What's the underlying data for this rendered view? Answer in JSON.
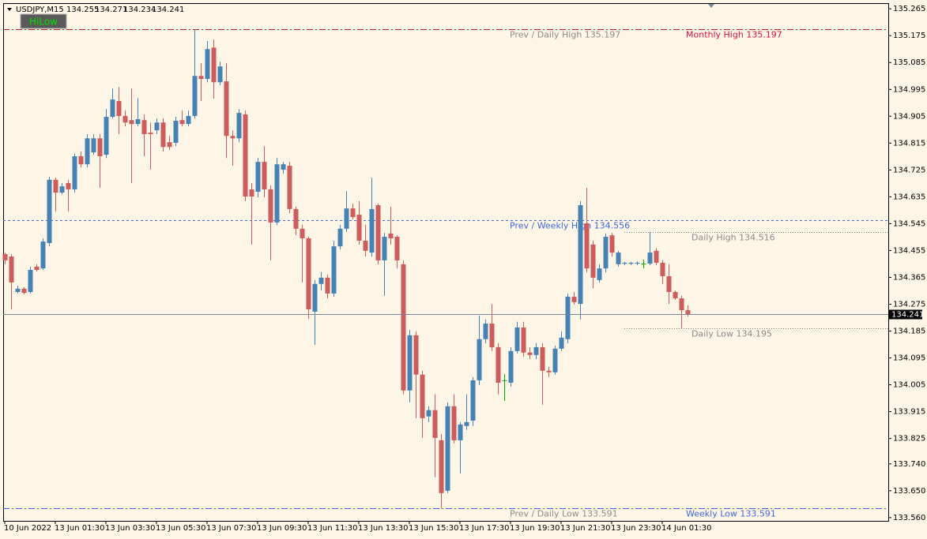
{
  "chart_data": {
    "type": "candlestick",
    "symbol": "USDJPY,M15",
    "button": "HiLow",
    "categories": [
      "10 Jun 2022",
      null,
      null,
      null,
      null,
      null,
      null,
      null,
      "13 Jun 01:30",
      null,
      null,
      null,
      null,
      null,
      null,
      null,
      "13 Jun 03:30",
      null,
      null,
      null,
      null,
      null,
      null,
      null,
      "13 Jun 05:30",
      null,
      null,
      null,
      null,
      null,
      null,
      null,
      "13 Jun 07:30",
      null,
      null,
      null,
      null,
      null,
      null,
      null,
      "13 Jun 09:30",
      null,
      null,
      null,
      null,
      null,
      null,
      null,
      "13 Jun 11:30",
      null,
      null,
      null,
      null,
      null,
      null,
      null,
      "13 Jun 13:30",
      null,
      null,
      null,
      null,
      null,
      null,
      null,
      "13 Jun 15:30",
      null,
      null,
      null,
      null,
      null,
      null,
      null,
      "13 Jun 17:30",
      null,
      null,
      null,
      null,
      null,
      null,
      null,
      "13 Jun 19:30",
      null,
      null,
      null,
      null,
      null,
      null,
      null,
      "13 Jun 21:30",
      null,
      null,
      null,
      null,
      null,
      null,
      null,
      "13 Jun 23:30",
      null,
      null,
      null,
      null,
      null,
      null,
      null,
      "14 Jun 01:30",
      null,
      null,
      null,
      null
    ],
    "open": [
      134.443,
      134.435,
      134.316,
      134.327,
      134.316,
      134.401,
      134.395,
      134.48,
      134.692,
      134.649,
      134.681,
      134.66,
      134.771,
      134.744,
      134.784,
      134.831,
      134.776,
      134.903,
      134.956,
      134.906,
      134.892,
      134.879,
      134.892,
      134.85,
      134.858,
      134.884,
      134.818,
      134.816,
      134.892,
      134.879,
      134.906,
      135.04,
      135.03,
      135.135,
      135.019,
      135.022,
      134.839,
      134.831,
      134.911,
      134.66,
      134.652,
      134.752,
      134.66,
      134.549,
      134.726,
      134.739,
      134.594,
      134.528,
      134.496,
      134.25,
      134.343,
      134.364,
      134.311,
      134.469,
      134.528,
      134.596,
      134.575,
      134.488,
      134.448,
      134.607,
      134.422,
      134.512,
      134.501,
      134.409,
      133.986,
      134.171,
      134.039,
      133.899,
      133.92,
      133.819,
      133.65,
      133.933,
      133.819,
      133.867,
      133.885,
      134.02,
      134.158,
      134.21,
      134.131,
      134.02,
      134.012,
      134.118,
      134.197,
      134.113,
      134.105,
      134.131,
      134.052,
      134.047,
      134.126,
      134.158,
      134.3,
      134.276,
      134.546,
      134.475,
      134.356,
      134.395,
      134.506,
      134.409,
      134.411,
      134.411,
      134.411,
      134.411,
      134.411,
      134.454,
      134.414,
      134.369,
      134.316,
      134.295,
      134.255
    ],
    "high": [
      134.448,
      134.443,
      134.337,
      134.332,
      134.401,
      134.409,
      134.496,
      134.702,
      134.699,
      134.681,
      134.692,
      134.779,
      134.787,
      134.845,
      134.845,
      134.845,
      134.929,
      134.998,
      135.003,
      134.924,
      134.998,
      134.966,
      134.911,
      134.884,
      134.898,
      134.898,
      134.839,
      134.903,
      134.924,
      134.924,
      135.197,
      135.083,
      135.157,
      135.162,
      135.088,
      135.083,
      134.858,
      134.929,
      134.924,
      134.681,
      134.765,
      134.805,
      134.673,
      134.765,
      134.752,
      134.752,
      134.602,
      134.541,
      134.501,
      134.356,
      134.382,
      134.374,
      134.488,
      134.541,
      134.654,
      134.612,
      134.62,
      134.541,
      134.699,
      134.612,
      134.514,
      134.602,
      134.506,
      134.422,
      134.189,
      134.184,
      134.052,
      133.933,
      133.973,
      133.84,
      133.946,
      133.973,
      133.88,
      133.973,
      134.031,
      134.237,
      134.224,
      134.276,
      134.144,
      134.041,
      134.131,
      134.216,
      134.216,
      134.131,
      134.144,
      134.144,
      134.065,
      134.136,
      134.184,
      134.311,
      134.316,
      134.62,
      134.665,
      134.488,
      134.409,
      134.512,
      134.514,
      134.454,
      134.417,
      134.417,
      134.419,
      134.424,
      134.516,
      134.462,
      134.422,
      134.409,
      134.321,
      134.303,
      134.271
    ],
    "low": [
      134.409,
      134.258,
      134.311,
      134.308,
      134.311,
      134.385,
      134.39,
      134.469,
      134.586,
      134.644,
      134.586,
      134.649,
      134.734,
      134.734,
      134.776,
      134.665,
      134.765,
      134.898,
      134.845,
      134.871,
      134.681,
      134.871,
      134.771,
      134.726,
      134.845,
      134.787,
      134.792,
      134.805,
      134.871,
      134.871,
      134.898,
      134.956,
      135.019,
      134.964,
      135.009,
      134.765,
      134.739,
      134.818,
      134.62,
      134.475,
      134.633,
      134.633,
      134.422,
      134.541,
      134.713,
      134.58,
      134.506,
      134.348,
      134.226,
      134.139,
      134.321,
      134.295,
      134.3,
      134.459,
      134.517,
      134.559,
      134.475,
      134.435,
      134.435,
      134.409,
      134.303,
      134.475,
      134.395,
      133.973,
      133.946,
      133.893,
      133.827,
      133.88,
      133.695,
      133.591,
      133.642,
      133.809,
      133.708,
      133.854,
      133.867,
      134.004,
      134.144,
      134.118,
      133.973,
      133.951,
      133.999,
      134.11,
      134.099,
      134.091,
      134.091,
      133.938,
      134.031,
      134.039,
      134.118,
      134.144,
      134.274,
      134.224,
      134.382,
      134.329,
      134.348,
      134.382,
      134.435,
      134.401,
      134.406,
      134.406,
      134.406,
      134.395,
      134.406,
      134.406,
      134.343,
      134.276,
      134.29,
      134.195,
      134.234
    ],
    "close": [
      134.422,
      134.348,
      134.327,
      134.313,
      134.39,
      134.39,
      134.485,
      134.692,
      134.649,
      134.67,
      134.66,
      134.771,
      134.744,
      134.831,
      134.831,
      134.771,
      134.903,
      134.961,
      134.906,
      134.884,
      134.879,
      134.895,
      134.845,
      134.845,
      134.884,
      134.802,
      134.802,
      134.89,
      134.879,
      134.906,
      135.04,
      135.03,
      135.13,
      135.019,
      135.072,
      134.839,
      134.831,
      134.916,
      134.636,
      134.636,
      134.752,
      134.66,
      134.549,
      134.744,
      134.744,
      134.594,
      134.528,
      134.496,
      134.258,
      134.343,
      134.364,
      134.311,
      134.469,
      134.528,
      134.596,
      134.567,
      134.488,
      134.454,
      134.594,
      134.422,
      134.501,
      134.496,
      134.422,
      133.986,
      134.171,
      134.039,
      133.893,
      133.92,
      133.827,
      133.642,
      133.933,
      133.819,
      133.872,
      133.88,
      134.02,
      134.158,
      134.21,
      134.131,
      134.012,
      134.02,
      134.118,
      134.197,
      134.113,
      134.105,
      134.131,
      134.052,
      134.047,
      134.126,
      134.163,
      134.3,
      134.282,
      134.607,
      134.395,
      134.364,
      134.395,
      134.501,
      134.448,
      134.448,
      134.414,
      134.414,
      134.414,
      134.411,
      134.448,
      134.414,
      134.369,
      134.316,
      134.295,
      134.255,
      134.241
    ],
    "up_color": "#4682b4",
    "down_color": "#cd5c5c",
    "doji_color": "#00b000",
    "ylim": [
      133.549,
      135.284
    ],
    "yticks": [
      135.265,
      135.175,
      135.085,
      134.995,
      134.905,
      134.815,
      134.725,
      134.635,
      134.545,
      134.455,
      134.365,
      134.275,
      134.185,
      134.095,
      134.005,
      133.915,
      133.825,
      {
        "value": 133.74,
        "label": "133.740"
      },
      {
        "value": 133.65,
        "label": "133.650"
      },
      {
        "value": 133.56,
        "label": "133.560"
      }
    ],
    "levels": [
      {
        "value": 135.197,
        "color": "#b22222",
        "style": "dashdot",
        "labels": [
          {
            "text": "Prev / Daily High 135.197",
            "color": "#8c8c8c"
          },
          {
            "text": "Monthly High 135.197",
            "color": "#dc143c"
          }
        ]
      },
      {
        "value": 134.556,
        "color": "#4169e1",
        "style": "dashed",
        "labels": [
          {
            "text": "Prev / Weekly High 134.556",
            "color": "#4169e1"
          }
        ]
      },
      {
        "value": 134.516,
        "color": "#808080",
        "style": "dotted",
        "labels": [
          {
            "text": "Daily High 134.516",
            "color": "#8c8c8c"
          }
        ]
      },
      {
        "value": 134.195,
        "color": "#808080",
        "style": "dotted",
        "labels": [
          {
            "text": "Daily Low 134.195",
            "color": "#8c8c8c"
          }
        ]
      },
      {
        "value": 133.591,
        "color": "#4169e1",
        "style": "dashdot",
        "labels": [
          {
            "text": "Prev / Daily Low 133.591",
            "color": "#8c8c8c"
          },
          {
            "text": "Weekly Low 133.591",
            "color": "#4169e1"
          }
        ]
      }
    ]
  }
}
